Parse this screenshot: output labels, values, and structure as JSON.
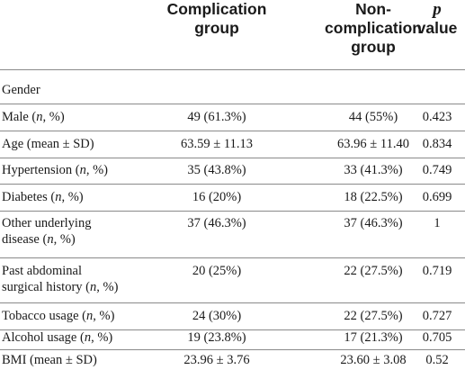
{
  "header": {
    "complication": [
      "Complication",
      "group"
    ],
    "non_complication": [
      "Non-",
      "complication",
      "group"
    ],
    "p_value": [
      "p",
      "value"
    ]
  },
  "rows": [
    {
      "label": "Gender",
      "c1": "",
      "c2": "",
      "c3": ""
    },
    {
      "label": "Male (n, %)",
      "c1": "49 (61.3%)",
      "c2": "44 (55%)",
      "c3": "0.423"
    },
    {
      "label": "Age (mean ± SD)",
      "c1": "63.59 ± 11.13",
      "c2": "63.96 ± 11.40",
      "c3": "0.834"
    },
    {
      "label": "Hypertension (n, %)",
      "c1": "35 (43.8%)",
      "c2": "33 (41.3%)",
      "c3": "0.749"
    },
    {
      "label": "Diabetes (n, %)",
      "c1": "16 (20%)",
      "c2": "18 (22.5%)",
      "c3": "0.699"
    },
    {
      "label": [
        "Other underlying",
        "disease (n, %)"
      ],
      "c1": "37 (46.3%)",
      "c2": "37 (46.3%)",
      "c3": "1"
    },
    {
      "label": [
        "Past abdominal",
        "surgical history (n, %)"
      ],
      "c1": "20 (25%)",
      "c2": "22 (27.5%)",
      "c3": "0.719"
    },
    {
      "label": "Tobacco usage (n, %)",
      "c1": "24 (30%)",
      "c2": "22 (27.5%)",
      "c3": "0.727"
    },
    {
      "label": "Alcohol usage (n, %)",
      "c1": "19 (23.8%)",
      "c2": "17 (21.3%)",
      "c3": "0.705"
    },
    {
      "label": "BMI (mean ± SD)",
      "c1": "23.96 ± 3.76",
      "c2": "23.60 ± 3.08",
      "c3": "0.52"
    }
  ]
}
